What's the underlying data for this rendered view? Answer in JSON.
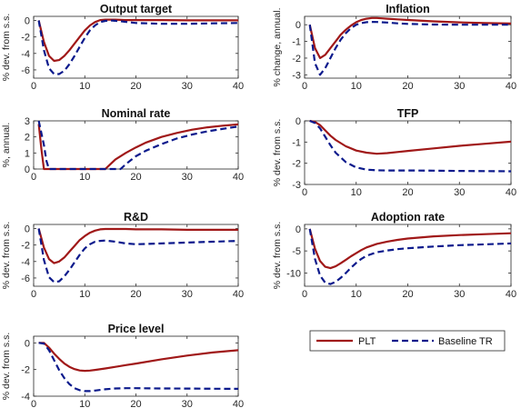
{
  "legend": {
    "placement": "bottom-right",
    "entries": [
      {
        "label": "PLT",
        "color": "#a01818",
        "style": "solid"
      },
      {
        "label": "Baseline TR",
        "color": "#0c1a8c",
        "style": "dashed"
      }
    ]
  },
  "chart_data": [
    {
      "type": "line",
      "title": "Output target",
      "ylabel": "% dev. from s.s.",
      "xlim": [
        0,
        40
      ],
      "ylim": [
        -7,
        0.5
      ],
      "xticks": [
        "0",
        "10",
        "20",
        "30",
        "40"
      ],
      "yticks": [
        "0",
        "-2",
        "-4",
        "-6"
      ],
      "ytick_values": [
        0,
        -2,
        -4,
        -6
      ],
      "series": [
        {
          "name": "PLT",
          "x": [
            1,
            2,
            3,
            4,
            5,
            6,
            7,
            8,
            9,
            10,
            11,
            12,
            13,
            14,
            16,
            18,
            20,
            25,
            30,
            35,
            40
          ],
          "y": [
            0,
            -2.6,
            -4.3,
            -4.9,
            -4.8,
            -4.3,
            -3.6,
            -2.8,
            -2.0,
            -1.2,
            -0.6,
            -0.2,
            0.05,
            0.1,
            0.1,
            0.05,
            0.05,
            0.05,
            0.02,
            0.02,
            0.02
          ]
        },
        {
          "name": "Baseline TR",
          "x": [
            1,
            2,
            3,
            4,
            5,
            6,
            7,
            8,
            9,
            10,
            11,
            12,
            13,
            14,
            15,
            17,
            20,
            25,
            30,
            35,
            40
          ],
          "y": [
            0,
            -3.6,
            -5.8,
            -6.5,
            -6.5,
            -6.1,
            -5.3,
            -4.3,
            -3.2,
            -2.1,
            -1.2,
            -0.6,
            -0.2,
            -0.05,
            0,
            -0.1,
            -0.3,
            -0.4,
            -0.4,
            -0.35,
            -0.3
          ]
        }
      ]
    },
    {
      "type": "line",
      "title": "Inflation",
      "ylabel": "% change, annual.",
      "xlim": [
        0,
        40
      ],
      "ylim": [
        -3.2,
        0.5
      ],
      "xticks": [
        "0",
        "10",
        "20",
        "30",
        "40"
      ],
      "yticks": [
        "0",
        "-1",
        "-2",
        "-3"
      ],
      "ytick_values": [
        0,
        -1,
        -2,
        -3
      ],
      "series": [
        {
          "name": "PLT",
          "x": [
            1,
            2,
            3,
            4,
            5,
            6,
            7,
            8,
            9,
            10,
            11,
            12,
            13,
            14,
            15,
            16,
            18,
            20,
            25,
            30,
            35,
            40
          ],
          "y": [
            0,
            -1.4,
            -2.0,
            -1.8,
            -1.4,
            -1.0,
            -0.6,
            -0.3,
            -0.05,
            0.15,
            0.28,
            0.36,
            0.4,
            0.4,
            0.38,
            0.36,
            0.32,
            0.28,
            0.2,
            0.14,
            0.1,
            0.07
          ]
        },
        {
          "name": "Baseline TR",
          "x": [
            1,
            2,
            3,
            4,
            5,
            6,
            7,
            8,
            9,
            10,
            11,
            12,
            13,
            14,
            16,
            18,
            20,
            25,
            30,
            35,
            40
          ],
          "y": [
            0,
            -2.3,
            -3.0,
            -2.6,
            -2.0,
            -1.4,
            -0.9,
            -0.5,
            -0.2,
            0.0,
            0.1,
            0.15,
            0.17,
            0.16,
            0.13,
            0.08,
            0.05,
            0.01,
            0.0,
            0.0,
            0.0
          ]
        }
      ]
    },
    {
      "type": "line",
      "title": "Nominal rate",
      "ylabel": "%, annual.",
      "xlim": [
        0,
        40
      ],
      "ylim": [
        0,
        3
      ],
      "xticks": [
        "0",
        "10",
        "20",
        "30",
        "40"
      ],
      "yticks": [
        "0",
        "1",
        "2",
        "3"
      ],
      "ytick_values": [
        0,
        1,
        2,
        3
      ],
      "series": [
        {
          "name": "PLT",
          "x": [
            1,
            1.5,
            2,
            14,
            15,
            16,
            18,
            20,
            22,
            25,
            28,
            31,
            34,
            37,
            40
          ],
          "y": [
            2.8,
            1.3,
            0,
            0,
            0.3,
            0.6,
            1.0,
            1.35,
            1.65,
            2.0,
            2.25,
            2.45,
            2.6,
            2.7,
            2.78
          ]
        },
        {
          "name": "Baseline TR",
          "x": [
            1,
            2,
            2.5,
            3,
            17,
            18,
            19,
            20,
            22,
            25,
            28,
            31,
            34,
            37,
            40
          ],
          "y": [
            3.0,
            1.5,
            0.5,
            0,
            0,
            0.3,
            0.55,
            0.8,
            1.15,
            1.55,
            1.9,
            2.15,
            2.35,
            2.5,
            2.65
          ]
        }
      ]
    },
    {
      "type": "line",
      "title": "TFP",
      "ylabel": "% dev. from s.s.",
      "xlim": [
        0,
        40
      ],
      "ylim": [
        -3,
        0
      ],
      "xticks": [
        "0",
        "10",
        "20",
        "30",
        "40"
      ],
      "yticks": [
        "0",
        "-1",
        "-2",
        "-3"
      ],
      "ytick_values": [
        0,
        -1,
        -2,
        -3
      ],
      "series": [
        {
          "name": "PLT",
          "x": [
            1,
            2,
            3,
            4,
            5,
            6,
            8,
            10,
            12,
            14,
            16,
            18,
            20,
            25,
            30,
            35,
            40
          ],
          "y": [
            0,
            -0.05,
            -0.2,
            -0.45,
            -0.7,
            -0.9,
            -1.2,
            -1.4,
            -1.5,
            -1.55,
            -1.52,
            -1.47,
            -1.42,
            -1.3,
            -1.18,
            -1.08,
            -0.98
          ]
        },
        {
          "name": "Baseline TR",
          "x": [
            1,
            2,
            3,
            4,
            5,
            6,
            8,
            10,
            12,
            14,
            16,
            18,
            20,
            25,
            30,
            35,
            40
          ],
          "y": [
            0,
            -0.1,
            -0.35,
            -0.75,
            -1.15,
            -1.5,
            -1.95,
            -2.2,
            -2.3,
            -2.33,
            -2.34,
            -2.34,
            -2.34,
            -2.35,
            -2.36,
            -2.37,
            -2.38
          ]
        }
      ]
    },
    {
      "type": "line",
      "title": "R&D",
      "ylabel": "% dev. from s.s.",
      "xlim": [
        0,
        40
      ],
      "ylim": [
        -7,
        0.5
      ],
      "xticks": [
        "0",
        "10",
        "20",
        "30",
        "40"
      ],
      "yticks": [
        "0",
        "-2",
        "-4",
        "-6"
      ],
      "ytick_values": [
        0,
        -2,
        -4,
        -6
      ],
      "series": [
        {
          "name": "PLT",
          "x": [
            1,
            2,
            3,
            4,
            5,
            6,
            7,
            8,
            9,
            10,
            11,
            12,
            13,
            14,
            16,
            18,
            20,
            25,
            30,
            35,
            40
          ],
          "y": [
            0,
            -2.3,
            -3.7,
            -4.2,
            -4.0,
            -3.5,
            -2.8,
            -2.1,
            -1.4,
            -0.9,
            -0.5,
            -0.25,
            -0.1,
            -0.05,
            -0.05,
            -0.05,
            -0.1,
            -0.1,
            -0.15,
            -0.15,
            -0.15
          ]
        },
        {
          "name": "Baseline TR",
          "x": [
            1,
            2,
            3,
            4,
            5,
            6,
            7,
            8,
            9,
            10,
            11,
            12,
            13,
            14,
            16,
            18,
            20,
            25,
            30,
            35,
            40
          ],
          "y": [
            0,
            -3.8,
            -5.9,
            -6.5,
            -6.4,
            -5.8,
            -5.0,
            -4.1,
            -3.2,
            -2.4,
            -1.9,
            -1.6,
            -1.5,
            -1.45,
            -1.6,
            -1.8,
            -1.9,
            -1.8,
            -1.7,
            -1.6,
            -1.5
          ]
        }
      ]
    },
    {
      "type": "line",
      "title": "Adoption rate",
      "ylabel": "% dev. from s.s.",
      "xlim": [
        0,
        40
      ],
      "ylim": [
        -13,
        1
      ],
      "xticks": [
        "0",
        "10",
        "20",
        "30",
        "40"
      ],
      "yticks": [
        "0",
        "-5",
        "-10"
      ],
      "ytick_values": [
        0,
        -5,
        -10
      ],
      "series": [
        {
          "name": "PLT",
          "x": [
            1,
            2,
            3,
            4,
            5,
            6,
            7,
            8,
            9,
            10,
            11,
            12,
            14,
            16,
            18,
            20,
            25,
            30,
            35,
            40
          ],
          "y": [
            0,
            -4.5,
            -7.3,
            -8.6,
            -8.9,
            -8.5,
            -7.8,
            -7.0,
            -6.2,
            -5.5,
            -4.8,
            -4.2,
            -3.4,
            -2.9,
            -2.5,
            -2.2,
            -1.7,
            -1.4,
            -1.2,
            -1.0
          ]
        },
        {
          "name": "Baseline TR",
          "x": [
            1,
            2,
            3,
            4,
            5,
            6,
            7,
            8,
            9,
            10,
            11,
            12,
            14,
            16,
            18,
            20,
            25,
            30,
            35,
            40
          ],
          "y": [
            0,
            -6.8,
            -10.6,
            -12.2,
            -12.5,
            -12.0,
            -11.1,
            -10.0,
            -8.8,
            -7.7,
            -6.8,
            -6.1,
            -5.3,
            -4.9,
            -4.6,
            -4.4,
            -4.0,
            -3.7,
            -3.5,
            -3.3
          ]
        }
      ]
    },
    {
      "type": "line",
      "title": "Price level",
      "ylabel": "% dev. from s.s.",
      "xlim": [
        0,
        40
      ],
      "ylim": [
        -4,
        0.5
      ],
      "xticks": [
        "0",
        "10",
        "20",
        "30",
        "40"
      ],
      "yticks": [
        "0",
        "-2",
        "-4"
      ],
      "ytick_values": [
        0,
        -2,
        -4
      ],
      "series": [
        {
          "name": "PLT",
          "x": [
            1,
            2,
            3,
            4,
            5,
            6,
            7,
            8,
            9,
            10,
            11,
            12,
            14,
            16,
            18,
            20,
            25,
            30,
            35,
            40
          ],
          "y": [
            0,
            0,
            -0.35,
            -0.8,
            -1.2,
            -1.55,
            -1.8,
            -1.97,
            -2.07,
            -2.1,
            -2.08,
            -2.03,
            -1.92,
            -1.8,
            -1.67,
            -1.55,
            -1.23,
            -0.95,
            -0.72,
            -0.55
          ]
        },
        {
          "name": "Baseline TR",
          "x": [
            1,
            2,
            3,
            4,
            5,
            6,
            7,
            8,
            9,
            10,
            11,
            12,
            14,
            16,
            18,
            20,
            25,
            30,
            35,
            40
          ],
          "y": [
            0,
            -0.05,
            -0.55,
            -1.3,
            -2.05,
            -2.65,
            -3.1,
            -3.4,
            -3.55,
            -3.62,
            -3.62,
            -3.58,
            -3.48,
            -3.42,
            -3.4,
            -3.4,
            -3.42,
            -3.43,
            -3.44,
            -3.45
          ]
        }
      ]
    }
  ]
}
